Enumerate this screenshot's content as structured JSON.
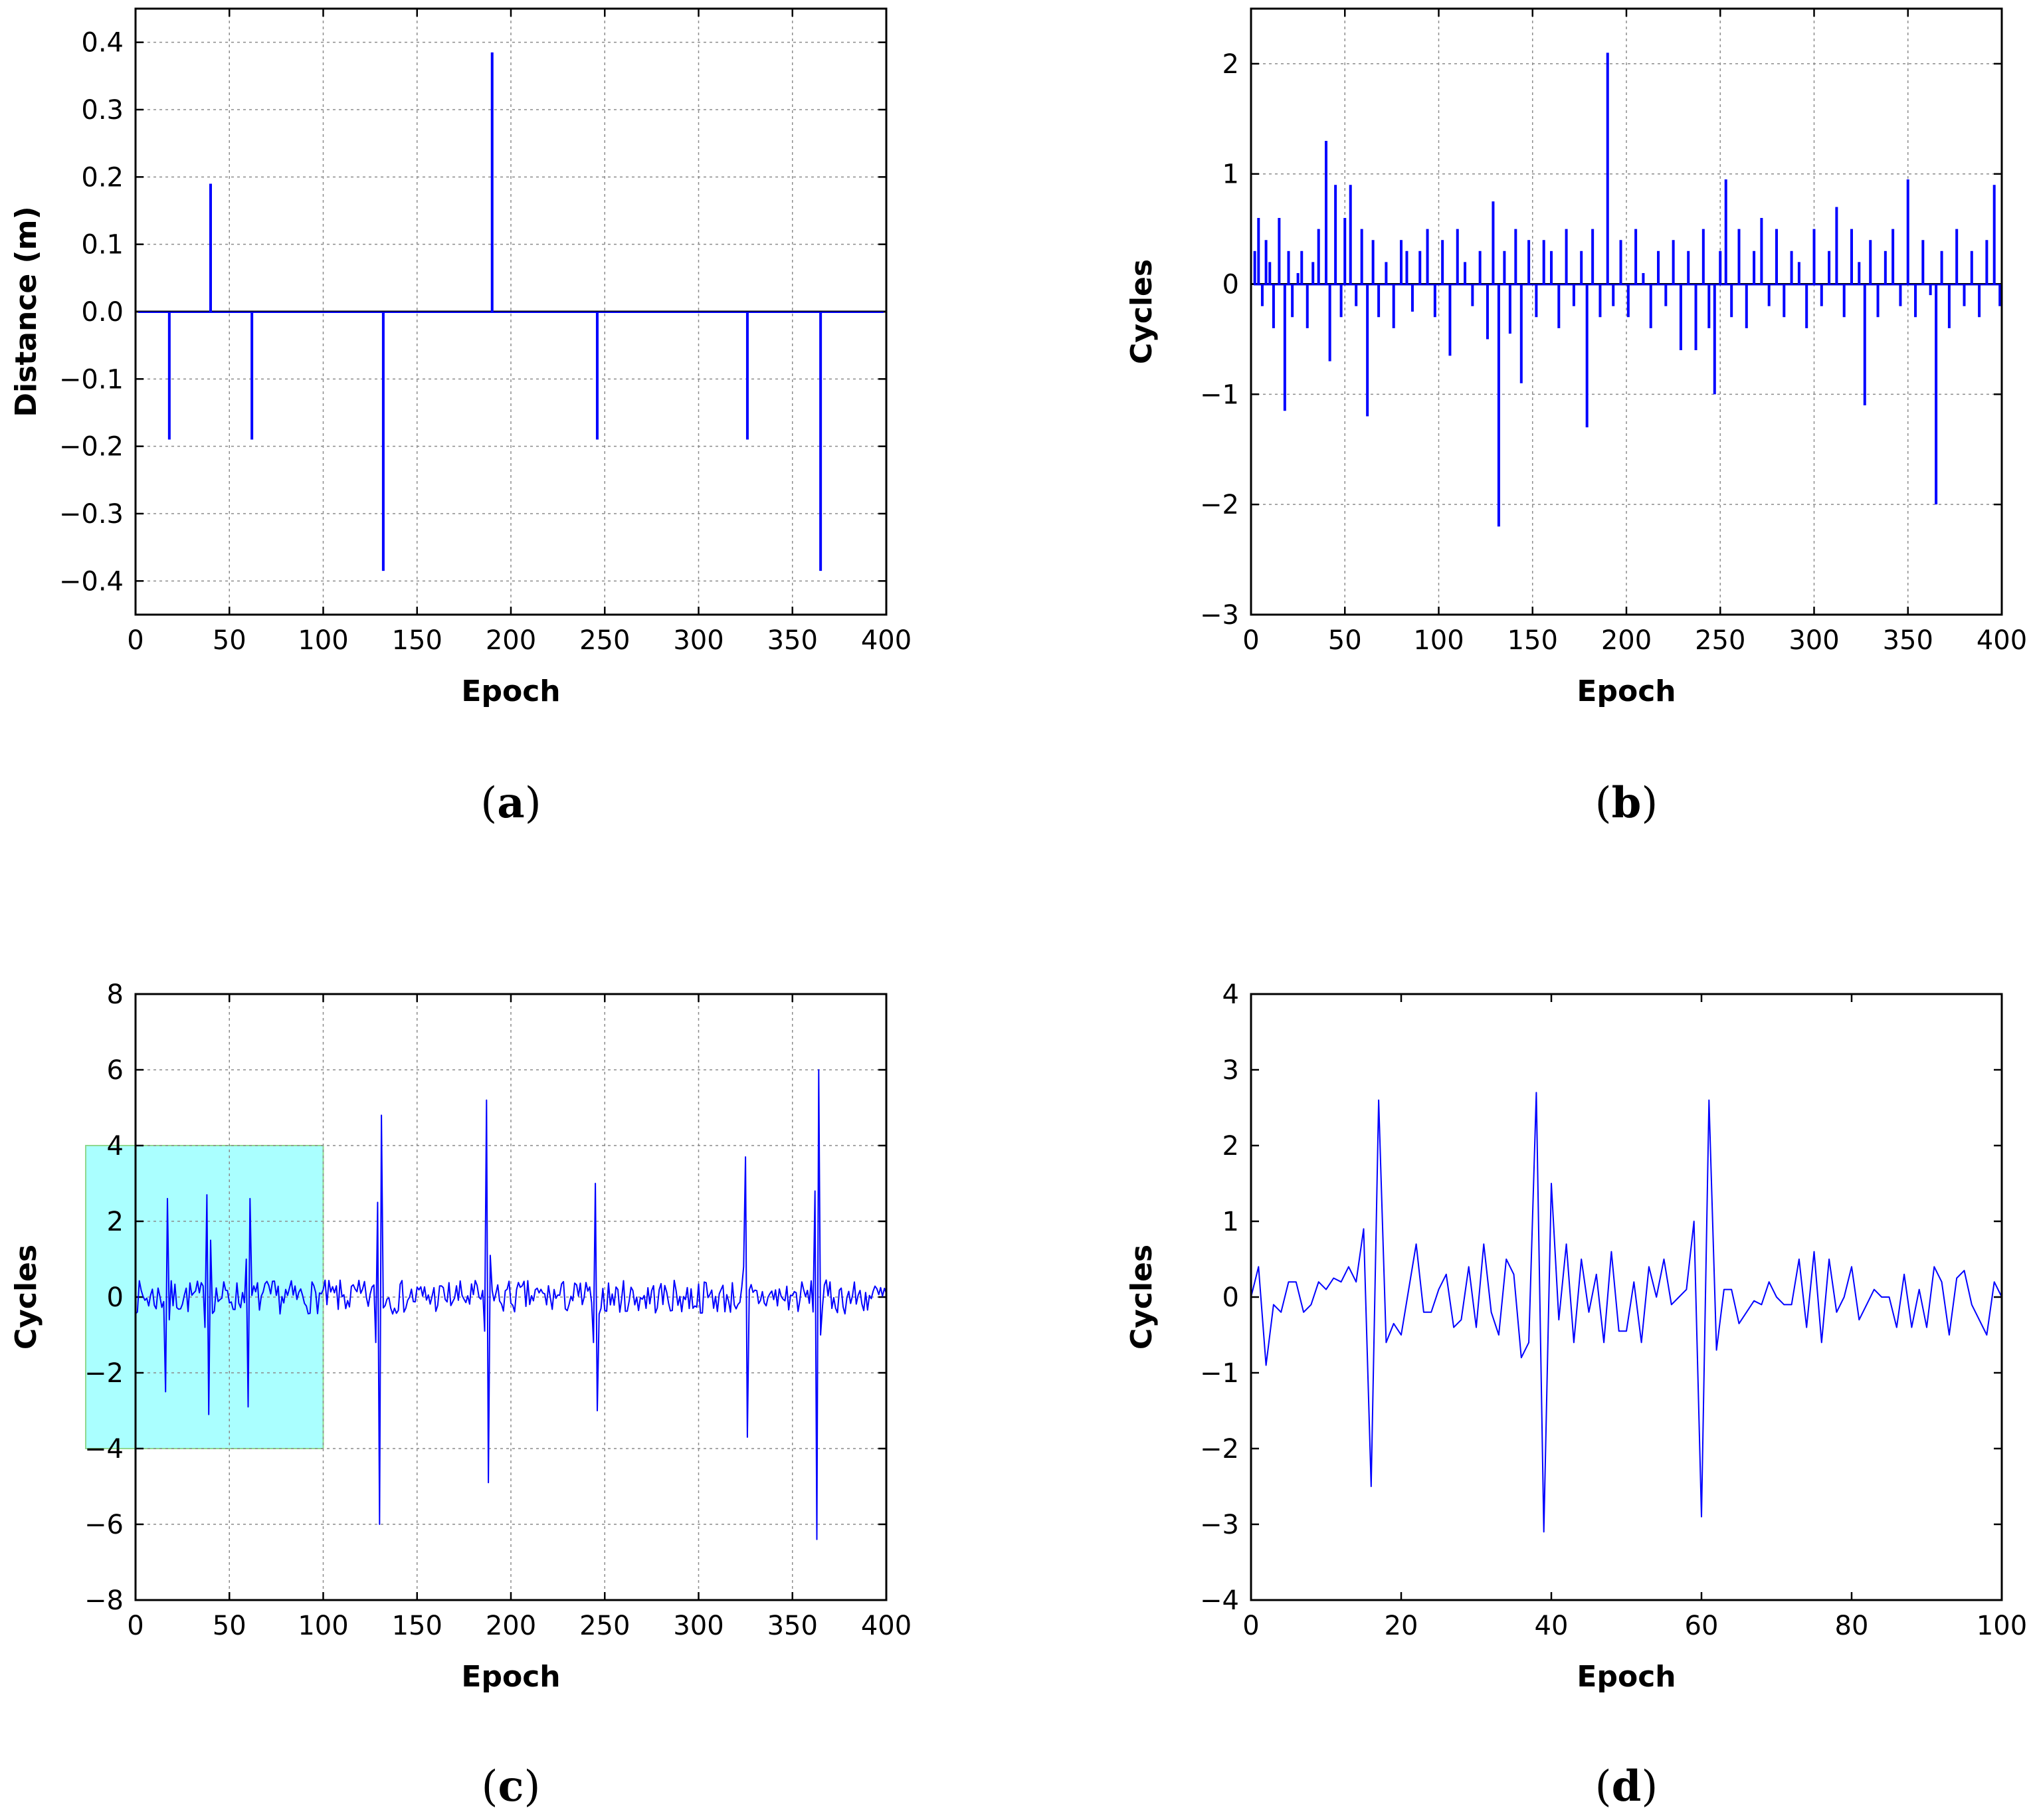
{
  "chart_data": [
    {
      "type": "bar",
      "panel": "a",
      "caption": "a",
      "xlabel": "Epoch",
      "ylabel": "Distance (m)",
      "xlim": [
        0,
        400
      ],
      "ylim": [
        -0.45,
        0.45
      ],
      "xticks": [
        0,
        50,
        100,
        150,
        200,
        250,
        300,
        350,
        400
      ],
      "yticks": [
        -0.4,
        -0.3,
        -0.2,
        -0.1,
        0.0,
        0.1,
        0.2,
        0.3,
        0.4
      ],
      "ytick_labels": [
        "−0.4",
        "−0.3",
        "−0.2",
        "−0.1",
        "0.0",
        "0.1",
        "0.2",
        "0.3",
        "0.4"
      ],
      "grid": true,
      "color": "#0000ff",
      "x": [
        18,
        40,
        62,
        132,
        190,
        246,
        326,
        365
      ],
      "values": [
        -0.19,
        0.19,
        -0.19,
        -0.385,
        0.385,
        -0.19,
        -0.19,
        -0.385
      ]
    },
    {
      "type": "bar",
      "panel": "b",
      "caption": "b",
      "xlabel": "Epoch",
      "ylabel": "Cycles",
      "xlim": [
        0,
        400
      ],
      "ylim": [
        -3,
        2.5
      ],
      "xticks": [
        0,
        50,
        100,
        150,
        200,
        250,
        300,
        350,
        400
      ],
      "yticks": [
        -3,
        -2,
        -1,
        0,
        1,
        2
      ],
      "ytick_labels": [
        "−3",
        "−2",
        "−1",
        "0",
        "1",
        "2"
      ],
      "grid": true,
      "color": "#0000ff",
      "x": [
        2,
        4,
        6,
        8,
        10,
        12,
        15,
        18,
        20,
        22,
        25,
        27,
        30,
        33,
        36,
        40,
        42,
        45,
        48,
        50,
        53,
        56,
        59,
        62,
        65,
        68,
        72,
        76,
        80,
        83,
        86,
        90,
        94,
        98,
        102,
        106,
        110,
        114,
        118,
        122,
        126,
        129,
        132,
        135,
        138,
        141,
        144,
        148,
        152,
        156,
        160,
        164,
        168,
        172,
        176,
        179,
        182,
        186,
        190,
        193,
        197,
        201,
        205,
        209,
        213,
        217,
        221,
        225,
        229,
        233,
        237,
        241,
        244,
        247,
        250,
        253,
        256,
        260,
        264,
        268,
        272,
        276,
        280,
        284,
        288,
        292,
        296,
        300,
        304,
        308,
        312,
        316,
        320,
        324,
        327,
        330,
        334,
        338,
        342,
        346,
        350,
        354,
        358,
        362,
        365,
        368,
        372,
        376,
        380,
        384,
        388,
        392,
        396,
        399
      ],
      "values": [
        0.3,
        0.6,
        -0.2,
        0.4,
        0.2,
        -0.4,
        0.6,
        -1.15,
        0.3,
        -0.3,
        0.1,
        0.3,
        -0.4,
        0.2,
        0.5,
        1.3,
        -0.7,
        0.9,
        -0.3,
        0.6,
        0.9,
        -0.2,
        0.5,
        -1.2,
        0.4,
        -0.3,
        0.2,
        -0.4,
        0.4,
        0.3,
        -0.25,
        0.3,
        0.5,
        -0.3,
        0.4,
        -0.65,
        0.5,
        0.2,
        -0.2,
        0.3,
        -0.5,
        0.75,
        -2.2,
        0.3,
        -0.45,
        0.5,
        -0.9,
        0.4,
        -0.3,
        0.4,
        0.3,
        -0.4,
        0.5,
        -0.2,
        0.3,
        -1.3,
        0.5,
        -0.3,
        2.1,
        -0.2,
        0.4,
        -0.3,
        0.5,
        0.1,
        -0.4,
        0.3,
        -0.2,
        0.4,
        -0.6,
        0.3,
        -0.6,
        0.5,
        -0.4,
        -1.0,
        0.3,
        0.95,
        -0.3,
        0.5,
        -0.4,
        0.3,
        0.6,
        -0.2,
        0.5,
        -0.3,
        0.3,
        0.2,
        -0.4,
        0.5,
        -0.2,
        0.3,
        0.7,
        -0.3,
        0.5,
        0.2,
        -1.1,
        0.4,
        -0.3,
        0.3,
        0.5,
        -0.2,
        0.95,
        -0.3,
        0.4,
        -0.1,
        -2.0,
        0.3,
        -0.4,
        0.5,
        -0.2,
        0.3,
        -0.3,
        0.4,
        0.9,
        -0.2
      ]
    },
    {
      "type": "line",
      "panel": "c",
      "caption": "c",
      "xlabel": "Epoch",
      "ylabel": "Cycles",
      "xlim": [
        0,
        400
      ],
      "ylim": [
        -8,
        8
      ],
      "xticks": [
        0,
        50,
        100,
        150,
        200,
        250,
        300,
        350,
        400
      ],
      "yticks": [
        -8,
        -6,
        -4,
        -2,
        0,
        2,
        4,
        6,
        8
      ],
      "ytick_labels": [
        "−8",
        "−6",
        "−4",
        "−2",
        "0",
        "2",
        "4",
        "6",
        "8"
      ],
      "grid": true,
      "color": "#0000ff",
      "highlight": {
        "x": [
          -27,
          100
        ],
        "y": [
          -4,
          4
        ],
        "fill": "#aaffff",
        "edge": "#8fd88f"
      },
      "spikes": [
        {
          "x": [
            16,
            17,
            18
          ],
          "y": [
            -2.5,
            2.6,
            -0.6
          ]
        },
        {
          "x": [
            37,
            38,
            39,
            40
          ],
          "y": [
            -0.8,
            2.7,
            -3.1,
            1.5
          ]
        },
        {
          "x": [
            59,
            60,
            61
          ],
          "y": [
            1.0,
            -2.9,
            2.6
          ]
        },
        {
          "x": [
            128,
            129,
            130,
            131
          ],
          "y": [
            -1.2,
            2.5,
            -6.0,
            4.8
          ]
        },
        {
          "x": [
            186,
            187,
            188,
            189
          ],
          "y": [
            -0.9,
            5.2,
            -4.9,
            1.1
          ]
        },
        {
          "x": [
            244,
            245,
            246
          ],
          "y": [
            -1.2,
            3.0,
            -3.0
          ]
        },
        {
          "x": [
            324,
            325,
            326
          ],
          "y": [
            0.8,
            3.7,
            -3.7
          ]
        },
        {
          "x": [
            362,
            363,
            364,
            365
          ],
          "y": [
            2.8,
            -6.4,
            6.0,
            -1.0
          ]
        }
      ],
      "noise_amplitude": 0.45
    },
    {
      "type": "line",
      "panel": "d",
      "caption": "d",
      "xlabel": "Epoch",
      "ylabel": "Cycles",
      "xlim": [
        0,
        100
      ],
      "ylim": [
        -4,
        4
      ],
      "xticks": [
        0,
        20,
        40,
        60,
        80,
        100
      ],
      "yticks": [
        -4,
        -3,
        -2,
        -1,
        0,
        1,
        2,
        3,
        4
      ],
      "ytick_labels": [
        "−4",
        "−3",
        "−2",
        "−1",
        "0",
        "1",
        "2",
        "3",
        "4"
      ],
      "grid": false,
      "color": "#0000ff",
      "x": [
        0,
        1,
        2,
        3,
        4,
        5,
        6,
        7,
        8,
        9,
        10,
        11,
        12,
        13,
        14,
        15,
        16,
        17,
        18,
        19,
        20,
        21,
        22,
        23,
        24,
        25,
        26,
        27,
        28,
        29,
        30,
        31,
        32,
        33,
        34,
        35,
        36,
        37,
        38,
        39,
        40,
        41,
        42,
        43,
        44,
        45,
        46,
        47,
        48,
        49,
        50,
        51,
        52,
        53,
        54,
        55,
        56,
        57,
        58,
        59,
        60,
        61,
        62,
        63,
        64,
        65,
        66,
        67,
        68,
        69,
        70,
        71,
        72,
        73,
        74,
        75,
        76,
        77,
        78,
        79,
        80,
        81,
        82,
        83,
        84,
        85,
        86,
        87,
        88,
        89,
        90,
        91,
        92,
        93,
        94,
        95,
        96,
        97,
        98,
        99,
        100
      ],
      "values": [
        0.0,
        0.4,
        -0.9,
        -0.1,
        -0.2,
        0.2,
        0.2,
        -0.2,
        -0.1,
        0.2,
        0.1,
        0.25,
        0.2,
        0.4,
        0.2,
        0.9,
        -2.5,
        2.6,
        -0.6,
        -0.35,
        -0.5,
        0.1,
        0.7,
        -0.2,
        -0.2,
        0.1,
        0.3,
        -0.4,
        -0.3,
        0.4,
        -0.4,
        0.7,
        -0.2,
        -0.5,
        0.5,
        0.3,
        -0.8,
        -0.6,
        2.7,
        -3.1,
        1.5,
        -0.3,
        0.7,
        -0.6,
        0.5,
        -0.2,
        0.3,
        -0.6,
        0.6,
        -0.45,
        -0.45,
        0.2,
        -0.6,
        0.4,
        0.0,
        0.5,
        -0.1,
        0.0,
        0.1,
        1.0,
        -2.9,
        2.6,
        -0.7,
        0.1,
        0.1,
        -0.35,
        -0.2,
        -0.05,
        -0.1,
        0.2,
        0.0,
        -0.1,
        -0.1,
        0.5,
        -0.4,
        0.6,
        -0.6,
        0.5,
        -0.2,
        0.0,
        0.4,
        -0.3,
        -0.1,
        0.1,
        0.0,
        0.0,
        -0.4,
        0.3,
        -0.4,
        0.1,
        -0.4,
        0.4,
        0.2,
        -0.5,
        0.25,
        0.35,
        -0.1,
        -0.3,
        -0.5,
        0.2,
        0.0
      ]
    }
  ]
}
